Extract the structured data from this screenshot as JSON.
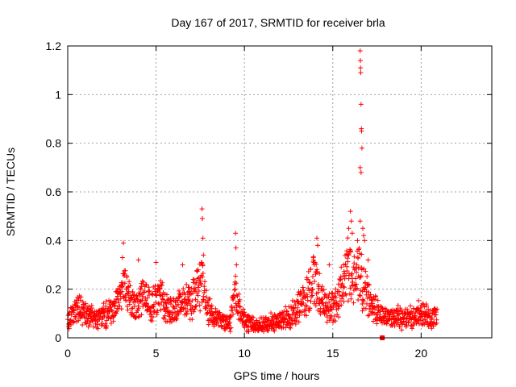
{
  "chart_data": {
    "type": "scatter",
    "title": "Day 167 of 2017, SRMTID for receiver brla",
    "xlabel": "GPS time / hours",
    "ylabel": "SRMTID / TECUs",
    "xlim": [
      0,
      24
    ],
    "ylim": [
      0,
      1.2
    ],
    "xticks": [
      0,
      5,
      10,
      15,
      20
    ],
    "yticks": [
      0,
      0.2,
      0.4,
      0.6,
      0.8,
      1.0,
      1.2
    ],
    "xtick_labels": [
      "0",
      "5",
      "10",
      "15",
      "20"
    ],
    "ytick_labels": [
      "0",
      "0.2",
      "0.4",
      "0.6",
      "0.8",
      "1",
      "1.2"
    ],
    "grid": true,
    "marker": "plus",
    "color": "#ff0000",
    "series_name": "SRMTID",
    "profile": {
      "x": [
        0,
        0.3,
        0.6,
        1.0,
        1.5,
        2.0,
        2.5,
        2.9,
        3.2,
        3.5,
        3.9,
        4.3,
        4.8,
        5.2,
        5.6,
        6.0,
        6.5,
        7.0,
        7.3,
        7.6,
        7.9,
        8.3,
        8.8,
        9.2,
        9.5,
        9.8,
        10.3,
        10.8,
        11.3,
        11.8,
        12.3,
        12.8,
        13.3,
        13.7,
        14.0,
        14.4,
        14.8,
        15.2,
        15.6,
        15.9,
        16.2,
        16.5,
        16.8,
        17.2,
        17.6,
        18.0,
        18.5,
        19.0,
        19.5,
        20.0,
        20.5,
        20.9
      ],
      "y": [
        0.06,
        0.1,
        0.13,
        0.09,
        0.08,
        0.09,
        0.1,
        0.15,
        0.2,
        0.15,
        0.12,
        0.17,
        0.13,
        0.18,
        0.12,
        0.11,
        0.14,
        0.15,
        0.2,
        0.22,
        0.12,
        0.08,
        0.07,
        0.06,
        0.2,
        0.08,
        0.06,
        0.05,
        0.06,
        0.07,
        0.08,
        0.1,
        0.14,
        0.2,
        0.25,
        0.14,
        0.13,
        0.14,
        0.22,
        0.3,
        0.25,
        0.26,
        0.2,
        0.12,
        0.1,
        0.08,
        0.09,
        0.08,
        0.09,
        0.1,
        0.08,
        0.09
      ]
    },
    "peaks": [
      {
        "x": 3.15,
        "y": 0.39
      },
      {
        "x": 3.1,
        "y": 0.33
      },
      {
        "x": 4.0,
        "y": 0.32
      },
      {
        "x": 5.0,
        "y": 0.31
      },
      {
        "x": 6.5,
        "y": 0.3
      },
      {
        "x": 7.6,
        "y": 0.53
      },
      {
        "x": 7.62,
        "y": 0.49
      },
      {
        "x": 7.65,
        "y": 0.41
      },
      {
        "x": 7.68,
        "y": 0.34
      },
      {
        "x": 9.5,
        "y": 0.43
      },
      {
        "x": 9.52,
        "y": 0.37
      },
      {
        "x": 9.55,
        "y": 0.3
      },
      {
        "x": 13.9,
        "y": 0.32
      },
      {
        "x": 14.1,
        "y": 0.41
      },
      {
        "x": 14.15,
        "y": 0.38
      },
      {
        "x": 14.8,
        "y": 0.3
      },
      {
        "x": 15.9,
        "y": 0.45
      },
      {
        "x": 16.0,
        "y": 0.52
      },
      {
        "x": 16.05,
        "y": 0.48
      },
      {
        "x": 16.1,
        "y": 0.43
      },
      {
        "x": 16.4,
        "y": 0.4
      },
      {
        "x": 16.55,
        "y": 1.18
      },
      {
        "x": 16.56,
        "y": 1.14
      },
      {
        "x": 16.57,
        "y": 1.11
      },
      {
        "x": 16.58,
        "y": 1.09
      },
      {
        "x": 16.6,
        "y": 0.96
      },
      {
        "x": 16.62,
        "y": 0.86
      },
      {
        "x": 16.63,
        "y": 0.85
      },
      {
        "x": 16.65,
        "y": 0.78
      },
      {
        "x": 16.55,
        "y": 0.7
      },
      {
        "x": 16.6,
        "y": 0.68
      },
      {
        "x": 16.55,
        "y": 0.48
      },
      {
        "x": 16.7,
        "y": 0.45
      },
      {
        "x": 16.75,
        "y": 0.42
      },
      {
        "x": 16.8,
        "y": 0.4
      },
      {
        "x": 17.0,
        "y": 0.32
      }
    ],
    "outlier": {
      "x": 17.8,
      "y": 0.0
    }
  }
}
